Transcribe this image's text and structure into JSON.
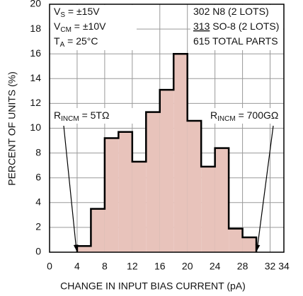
{
  "chart_data": {
    "type": "histogram",
    "x_label": "CHANGE IN INPUT BIAS CURRENT (pA)",
    "y_label": "PERCENT OF UNITS (%)",
    "bins": [
      4,
      6,
      8,
      10,
      12,
      14,
      16,
      18,
      20,
      22,
      24,
      26,
      28,
      30
    ],
    "counts": [
      0.5,
      3.5,
      9.2,
      9.7,
      7.3,
      11.3,
      13.1,
      16.0,
      10.6,
      6.9,
      8.4,
      1.9,
      1.2
    ],
    "color": "#e8c3bb",
    "edge_color": "#000000",
    "xlim": [
      0,
      34
    ],
    "xticks": [
      0,
      4,
      8,
      12,
      16,
      20,
      24,
      28,
      32,
      34
    ],
    "ylim": [
      0,
      20
    ],
    "yticks": [
      0,
      2,
      4,
      6,
      8,
      10,
      12,
      14,
      16,
      18,
      20
    ],
    "grid": true,
    "conditions": [
      [
        {
          "text": "V"
        },
        {
          "sub": "S"
        },
        {
          "text": " = ±15V"
        }
      ],
      [
        {
          "text": "V"
        },
        {
          "sub": "CM"
        },
        {
          "text": " = ±10V"
        }
      ],
      [
        {
          "text": "T"
        },
        {
          "sub": "A"
        },
        {
          "text": " = 25°C"
        }
      ]
    ],
    "parts": [
      [
        {
          "text": "302 N8 (2 LOTS)"
        }
      ],
      [
        {
          "underline": "313"
        },
        {
          "text": " SO-8 (2 LOTS)"
        }
      ],
      [
        {
          "text": "615 TOTAL PARTS"
        }
      ]
    ],
    "annotations": [
      [
        {
          "text": "R"
        },
        {
          "sub": "INCM"
        },
        {
          "text": " = 5TΩ"
        }
      ],
      [
        {
          "text": "R"
        },
        {
          "sub": "INCM"
        },
        {
          "text": " = 700GΩ"
        }
      ]
    ]
  }
}
